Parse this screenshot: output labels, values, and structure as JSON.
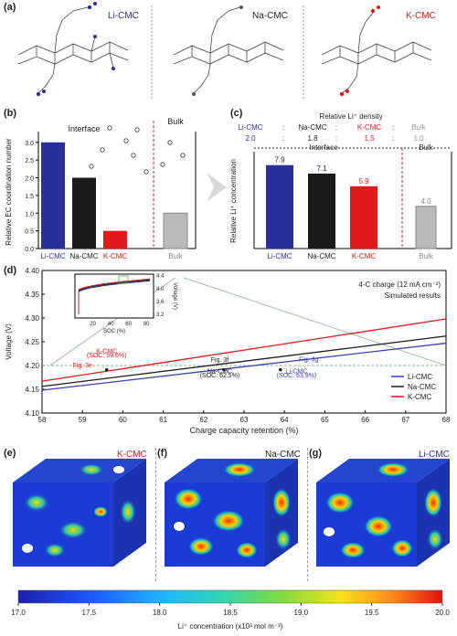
{
  "panel_labels": {
    "a": "(a)",
    "b": "(b)",
    "c": "(c)",
    "d": "(d)",
    "e": "(e)",
    "f": "(f)",
    "g": "(g)"
  },
  "panel_a": {
    "items": [
      {
        "label": "Li-CMC",
        "color": "#2a2f9e"
      },
      {
        "label": "Na-CMC",
        "color": "#222222"
      },
      {
        "label": "K-CMC",
        "color": "#d11f1f"
      }
    ]
  },
  "colors": {
    "li": "#2a2f9e",
    "na": "#1a1a1a",
    "k": "#e0191b",
    "bulk": "#b9b9b9",
    "red_line": "#d11f1f"
  },
  "chart_data": [
    {
      "id": "b",
      "type": "bar",
      "categories": [
        "Li-CMC",
        "Na-CMC",
        "K-CMC",
        "Bulk"
      ],
      "values": [
        3.0,
        2.0,
        0.5,
        1.0
      ],
      "ylabel": "Relative EC coordination number",
      "yticks": [
        "0.0",
        "0.5",
        "1.0",
        "1.5",
        "2.0",
        "2.5",
        "3.0"
      ],
      "ylim": [
        0,
        3.2
      ],
      "region_labels": [
        "Interface",
        "Bulk"
      ]
    },
    {
      "id": "c",
      "type": "bar",
      "categories": [
        "Li-CMC",
        "Na-CMC",
        "K-CMC",
        "Bulk"
      ],
      "values": [
        7.9,
        7.1,
        5.9,
        4.0
      ],
      "value_labels": [
        "7.9",
        "7.1",
        "5.9",
        "4.0"
      ],
      "ylabel": "Relative Li⁺ concentration",
      "ylim": [
        0,
        9
      ],
      "header": "Relative Li⁺ density",
      "ratio_names": [
        "Li-CMC",
        ":",
        "Na-CMC",
        ":",
        "K-CMC",
        ":",
        "Bulk"
      ],
      "ratio_values": [
        "2.0",
        ":",
        "1.8",
        ":",
        "1.5",
        ":",
        "1.0"
      ],
      "region_labels": [
        "Interface",
        "Bulk"
      ]
    },
    {
      "id": "d",
      "type": "line",
      "xlabel": "Charge capacity retention (%)",
      "ylabel": "Voltage (V)",
      "xlim": [
        58,
        68
      ],
      "ylim": [
        4.1,
        4.4
      ],
      "xticks": [
        "58",
        "59",
        "60",
        "61",
        "62",
        "63",
        "64",
        "65",
        "66",
        "67",
        "68"
      ],
      "yticks": [
        "4.10",
        "4.15",
        "4.20",
        "4.25",
        "4.30",
        "4.35",
        "4.40"
      ],
      "series": [
        {
          "name": "Li-CMC",
          "color": "#3a3fbf",
          "x": [
            58,
            68
          ],
          "y": [
            4.148,
            4.247
          ]
        },
        {
          "name": "Na-CMC",
          "color": "#1a1a1a",
          "x": [
            58,
            68
          ],
          "y": [
            4.156,
            4.262
          ]
        },
        {
          "name": "K-CMC",
          "color": "#e0191b",
          "x": [
            58,
            68
          ],
          "y": [
            4.167,
            4.298
          ]
        }
      ],
      "ref_line_y": 4.2,
      "annotations": [
        {
          "text": "K-CMC",
          "x": 59.6,
          "y": 4.226,
          "color": "#e0191b"
        },
        {
          "text": "(SOC: 59.6%)",
          "x": 59.6,
          "y": 4.217,
          "color": "#e0191b"
        },
        {
          "text": "Fig. 3e",
          "x": 59.0,
          "y": 4.196,
          "color": "#e0191b"
        },
        {
          "text": "Fig. 3f",
          "x": 62.4,
          "y": 4.208,
          "color": "#1a1a1a"
        },
        {
          "text": "Na-CMC",
          "x": 62.4,
          "y": 4.184,
          "color": "#1a1a1a"
        },
        {
          "text": "(SOC: 62.5%)",
          "x": 62.4,
          "y": 4.175,
          "color": "#1a1a1a"
        },
        {
          "text": "Fig. 3g",
          "x": 64.6,
          "y": 4.209,
          "color": "#3a3fbf"
        },
        {
          "text": "Li-CMC",
          "x": 64.3,
          "y": 4.184,
          "color": "#3a3fbf"
        },
        {
          "text": "(SOC: 63.9%)",
          "x": 64.3,
          "y": 4.175,
          "color": "#3a3fbf"
        }
      ],
      "text_right": [
        "4-C charge (12 mA cm⁻²)",
        "Simulated results"
      ],
      "inset": {
        "xlabel": "SOC (%)",
        "ylabel": "Voltage (V)",
        "xticks": [
          "20",
          "40",
          "60",
          "80"
        ],
        "yticks": [
          "3.2",
          "3.6",
          "4.0",
          "4.4"
        ]
      }
    },
    {
      "id": "colorbar",
      "type": "heatmap",
      "tick_labels": [
        "17.0",
        "17.5",
        "18.0",
        "18.5",
        "19.0",
        "19.5",
        "20.0"
      ],
      "range": [
        17.0,
        20.0
      ],
      "label": "Li⁺ concentration (x10³ mol m⁻³)"
    }
  ],
  "panel_efg": [
    {
      "label": "K-CMC",
      "color": "#d11f1f"
    },
    {
      "label": "Na-CMC",
      "color": "#222222"
    },
    {
      "label": "Li-CMC",
      "color": "#2a2f9e"
    }
  ]
}
